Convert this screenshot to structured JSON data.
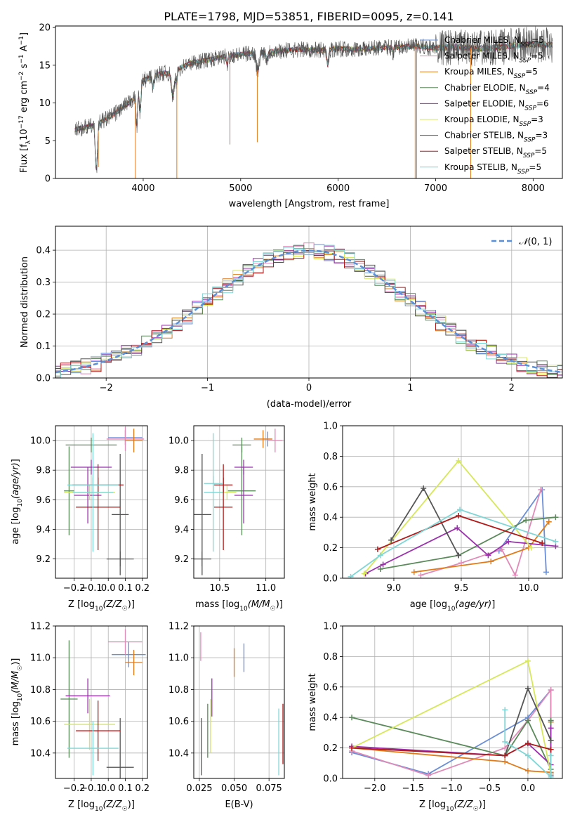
{
  "figure_title": "PLATE=1798, MJD=53851, FIBERID=0095, z=0.141",
  "colors": {
    "Chabrier MILES": "#6a8fd8",
    "Salpeter MILES": "#e08ab8",
    "Kroupa MILES": "#e07b1a",
    "Chabrier ELODIE": "#5a8a5a",
    "Salpeter ELODIE": "#9b2fae",
    "Kroupa ELODIE": "#d6e85a",
    "Chabrier STELIB": "#555555",
    "Salpeter STELIB": "#b01a1a",
    "Kroupa STELIB": "#7fd6d6",
    "normal": "#5b8fd6"
  },
  "chart_data": [
    {
      "id": "spectrum",
      "type": "line",
      "title": "PLATE=1798, MJD=53851, FIBERID=0095, z=0.141",
      "xlabel": "wavelength [Angstrom, rest frame]",
      "ylabel": "Flux [f_λ10^-17 erg cm^-2 s^-1 A^-1]",
      "xlim": [
        3100,
        8300
      ],
      "ylim": [
        0,
        20.2
      ],
      "xticks": [
        4000,
        5000,
        6000,
        7000,
        8000
      ],
      "yticks": [
        0,
        5,
        10,
        15,
        20
      ],
      "legend_position": "top-right",
      "legend": [
        "Chabrier MILES, N_SSP=5",
        "Salpeter MILES, N_SSP=5",
        "Kroupa MILES, N_SSP=5",
        "Chabrier ELODIE, N_SSP=4",
        "Salpeter ELODIE, N_SSP=6",
        "Kroupa ELODIE, N_SSP=3",
        "Chabrier STELIB, N_SSP=3",
        "Salpeter STELIB, N_SSP=5",
        "Kroupa STELIB, N_SSP=5"
      ],
      "continuum": {
        "x": [
          3300,
          3500,
          3700,
          3800,
          3900,
          3950,
          4000,
          4100,
          4200,
          4300,
          4400,
          4500,
          4700,
          4900,
          5000,
          5200,
          5400,
          5600,
          5800,
          6000,
          6200,
          6400,
          6600,
          6800,
          7000,
          7200,
          7400,
          7600,
          7800,
          8000,
          8200
        ],
        "y": [
          6.5,
          7,
          8.5,
          9.5,
          10.5,
          11,
          13,
          13.5,
          14,
          13.8,
          14.8,
          15.3,
          15.8,
          16.3,
          16.4,
          16.7,
          16.9,
          17.1,
          17,
          17.2,
          17.1,
          17.3,
          17.4,
          17.5,
          17.3,
          17.4,
          17.2,
          17.3,
          17.6,
          17.8,
          17.7
        ]
      },
      "absorption_lines": [
        {
          "x": 3520,
          "depth": 6,
          "width": 15
        },
        {
          "x": 3934,
          "depth": 4,
          "width": 10
        },
        {
          "x": 3969,
          "depth": 3,
          "width": 10
        },
        {
          "x": 4102,
          "depth": 1.5,
          "width": 12
        },
        {
          "x": 4305,
          "depth": 3,
          "width": 20
        },
        {
          "x": 4341,
          "depth": 1.5,
          "width": 10
        },
        {
          "x": 4861,
          "depth": 1.2,
          "width": 10
        },
        {
          "x": 5175,
          "depth": 2.5,
          "width": 20
        },
        {
          "x": 5270,
          "depth": 1,
          "width": 15
        },
        {
          "x": 5893,
          "depth": 2,
          "width": 15
        },
        {
          "x": 6563,
          "depth": 0.8,
          "width": 8
        }
      ],
      "spikes": [
        {
          "x": 3540,
          "y": 1.5
        },
        {
          "x": 3920,
          "y": 0
        },
        {
          "x": 4345,
          "y": 0
        },
        {
          "x": 4890,
          "y": 4.5
        },
        {
          "x": 5170,
          "y": 4.8
        },
        {
          "x": 6790,
          "y": 0
        },
        {
          "x": 6805,
          "y": 0
        },
        {
          "x": 7360,
          "y": 0
        }
      ]
    },
    {
      "id": "residuals",
      "type": "histogram",
      "xlabel": "(data-model)/error",
      "ylabel": "Normed distribution",
      "xlim": [
        -2.5,
        2.5
      ],
      "ylim": [
        0,
        0.475
      ],
      "xticks": [
        -2,
        -1,
        0,
        1,
        2
      ],
      "yticks": [
        0,
        0.1,
        0.2,
        0.3,
        0.4
      ],
      "legend_position": "top-right",
      "legend": [
        "N(0,1)"
      ],
      "bin_width": 0.1
    },
    {
      "id": "age_vs_Z",
      "type": "errorbar",
      "xlabel": "Z [log10(Z/Z☉)]",
      "ylabel": "age [log10(age/yr)]",
      "xlim": [
        -0.31,
        0.23
      ],
      "ylim": [
        9.07,
        10.1
      ],
      "xticks": [
        -0.2,
        -0.1,
        0.0,
        0.1,
        0.2
      ],
      "yticks": [
        9.2,
        9.4,
        9.6,
        9.8,
        10.0
      ],
      "points": [
        {
          "m": "Chabrier MILES",
          "x": 0.1,
          "xe": 0.1,
          "y": 10.02,
          "ye": 0.05
        },
        {
          "m": "Salpeter MILES",
          "x": 0.1,
          "xe": 0.11,
          "y": 10.01,
          "ye": 0.08
        },
        {
          "m": "Kroupa MILES",
          "x": 0.15,
          "xe": 0.05,
          "y": 10.0,
          "ye": 0.08
        },
        {
          "m": "Chabrier ELODIE",
          "x": -0.23,
          "xe": 0.03,
          "y": 9.66,
          "ye": 0.3
        },
        {
          "m": "Chabrier ELODIE",
          "x": -0.1,
          "xe": 0.15,
          "y": 9.97,
          "ye": 0.05
        },
        {
          "m": "Salpeter ELODIE",
          "x": -0.12,
          "xe": 0.08,
          "y": 9.63,
          "ye": 0.19
        },
        {
          "m": "Salpeter ELODIE",
          "x": -0.1,
          "xe": 0.12,
          "y": 9.82,
          "ye": 0.05
        },
        {
          "m": "Kroupa ELODIE",
          "x": -0.11,
          "xe": 0.15,
          "y": 9.65,
          "ye": 0.05
        },
        {
          "m": "Chabrier STELIB",
          "x": 0.07,
          "xe": 0.05,
          "y": 9.5,
          "ye": 0.41
        },
        {
          "m": "Chabrier STELIB",
          "x": 0.07,
          "xe": 0.08,
          "y": 9.2,
          "ye": 0.05
        },
        {
          "m": "Salpeter STELIB",
          "x": -0.06,
          "xe": 0.13,
          "y": 9.55,
          "ye": 0.29
        },
        {
          "m": "Salpeter STELIB",
          "x": -0.06,
          "xe": 0.15,
          "y": 9.7,
          "ye": 0.05
        },
        {
          "m": "Kroupa STELIB",
          "x": -0.09,
          "xe": 0.12,
          "y": 9.65,
          "ye": 0.4
        },
        {
          "m": "Kroupa STELIB",
          "x": -0.09,
          "xe": 0.15,
          "y": 9.7,
          "ye": 0.05
        }
      ]
    },
    {
      "id": "age_vs_mass",
      "type": "errorbar",
      "xlabel": "mass [log10(M/M☉)]",
      "ylabel": "",
      "xlim": [
        10.22,
        11.2
      ],
      "ylim": [
        9.07,
        10.1
      ],
      "xticks": [
        10.5,
        11.0
      ],
      "yticks": [
        9.2,
        9.4,
        9.6,
        9.8,
        10.0
      ],
      "points": [
        {
          "m": "Chabrier MILES",
          "x": 11.02,
          "xe": 0.05,
          "y": 10.01,
          "ye": 0.05
        },
        {
          "m": "Salpeter MILES",
          "x": 11.1,
          "xe": 0.08,
          "y": 10.0,
          "ye": 0.08
        },
        {
          "m": "Kroupa MILES",
          "x": 10.97,
          "xe": 0.1,
          "y": 10.01,
          "ye": 0.06
        },
        {
          "m": "Chabrier ELODIE",
          "x": 10.74,
          "xe": 0.15,
          "y": 9.66,
          "ye": 0.3
        },
        {
          "m": "Chabrier ELODIE",
          "x": 10.74,
          "xe": 0.1,
          "y": 9.97,
          "ye": 0.05
        },
        {
          "m": "Salpeter ELODIE",
          "x": 10.76,
          "xe": 0.1,
          "y": 9.63,
          "ye": 0.19
        },
        {
          "m": "Salpeter ELODIE",
          "x": 10.76,
          "xe": 0.1,
          "y": 9.82,
          "ye": 0.05
        },
        {
          "m": "Kroupa ELODIE",
          "x": 10.58,
          "xe": 0.1,
          "y": 9.65,
          "ye": 0.05
        },
        {
          "m": "Chabrier STELIB",
          "x": 10.31,
          "xe": 0.1,
          "y": 9.5,
          "ye": 0.41
        },
        {
          "m": "Chabrier STELIB",
          "x": 10.31,
          "xe": 0.1,
          "y": 9.2,
          "ye": 0.05
        },
        {
          "m": "Salpeter STELIB",
          "x": 10.54,
          "xe": 0.1,
          "y": 9.55,
          "ye": 0.29
        },
        {
          "m": "Salpeter STELIB",
          "x": 10.54,
          "xe": 0.1,
          "y": 9.7,
          "ye": 0.05
        },
        {
          "m": "Kroupa STELIB",
          "x": 10.43,
          "xe": 0.1,
          "y": 9.65,
          "ye": 0.4
        },
        {
          "m": "Kroupa STELIB",
          "x": 10.43,
          "xe": 0.1,
          "y": 9.71,
          "ye": 0.05
        }
      ]
    },
    {
      "id": "mass_weight_vs_age",
      "type": "line",
      "xlabel": "age [log10(age/yr)]",
      "ylabel": "mass weight",
      "xlim": [
        8.62,
        10.25
      ],
      "ylim": [
        0,
        1
      ],
      "xticks": [
        9.0,
        9.5,
        10.0
      ],
      "yticks": [
        0,
        0.2,
        0.4,
        0.6,
        0.8,
        1.0
      ],
      "series": [
        {
          "m": "Chabrier MILES",
          "x": [
            9.78,
            10.1,
            10.13
          ],
          "y": [
            0.18,
            0.58,
            0.04
          ]
        },
        {
          "m": "Salpeter MILES",
          "x": [
            9.2,
            9.5,
            9.8,
            9.9,
            10.09
          ],
          "y": [
            0.02,
            0.1,
            0.19,
            0.02,
            0.58
          ]
        },
        {
          "m": "Kroupa MILES",
          "x": [
            9.15,
            9.72,
            10.0,
            10.15
          ],
          "y": [
            0.04,
            0.11,
            0.2,
            0.37
          ]
        },
        {
          "m": "Chabrier ELODIE",
          "x": [
            8.9,
            9.48,
            9.98,
            10.2
          ],
          "y": [
            0.06,
            0.15,
            0.38,
            0.4
          ]
        },
        {
          "m": "Salpeter ELODIE",
          "x": [
            8.79,
            8.92,
            9.47,
            9.7,
            9.85,
            10.2
          ],
          "y": [
            0.03,
            0.09,
            0.33,
            0.15,
            0.24,
            0.21
          ]
        },
        {
          "m": "Kroupa ELODIE",
          "x": [
            8.78,
            9.48,
            10.02
          ],
          "y": [
            0.03,
            0.77,
            0.2
          ]
        },
        {
          "m": "Chabrier STELIB",
          "x": [
            8.98,
            9.22,
            9.48
          ],
          "y": [
            0.25,
            0.59,
            0.15
          ]
        },
        {
          "m": "Salpeter STELIB",
          "x": [
            8.88,
            9.48,
            10.1
          ],
          "y": [
            0.19,
            0.41,
            0.23
          ]
        },
        {
          "m": "Kroupa STELIB",
          "x": [
            8.68,
            8.9,
            9.49,
            10.2
          ],
          "y": [
            0.01,
            0.15,
            0.45,
            0.24
          ]
        }
      ]
    },
    {
      "id": "mass_vs_Z",
      "type": "errorbar",
      "xlabel": "Z [log10(Z/Z☉)]",
      "ylabel": "mass [log10(M/M☉)]",
      "xlim": [
        -0.31,
        0.23
      ],
      "ylim": [
        10.24,
        11.2
      ],
      "xticks": [
        -0.2,
        -0.1,
        0.0,
        0.1,
        0.2
      ],
      "yticks": [
        10.4,
        10.6,
        10.8,
        11.0,
        11.2
      ],
      "points": [
        {
          "m": "Chabrier MILES",
          "x": 0.12,
          "xe": 0.1,
          "y": 11.02,
          "ye": 0.08
        },
        {
          "m": "Salpeter MILES",
          "x": 0.1,
          "xe": 0.1,
          "y": 11.1,
          "ye": 0.08
        },
        {
          "m": "Kroupa MILES",
          "x": 0.15,
          "xe": 0.05,
          "y": 10.97,
          "ye": 0.08
        },
        {
          "m": "Chabrier ELODIE",
          "x": -0.23,
          "xe": 0.05,
          "y": 10.74,
          "ye": 0.37
        },
        {
          "m": "Salpeter ELODIE",
          "x": -0.12,
          "xe": 0.13,
          "y": 10.76,
          "ye": 0.11
        },
        {
          "m": "Kroupa ELODIE",
          "x": -0.11,
          "xe": 0.15,
          "y": 10.58,
          "ye": 0.16
        },
        {
          "m": "Chabrier STELIB",
          "x": 0.07,
          "xe": 0.08,
          "y": 10.31,
          "ye": 0.31
        },
        {
          "m": "Salpeter STELIB",
          "x": -0.06,
          "xe": 0.13,
          "y": 10.54,
          "ye": 0.19
        },
        {
          "m": "Kroupa STELIB",
          "x": -0.09,
          "xe": 0.15,
          "y": 10.43,
          "ye": 0.17
        }
      ]
    },
    {
      "id": "mass_vs_EBV",
      "type": "errorbar",
      "xlabel": "E(B-V)",
      "ylabel": "",
      "xlim": [
        0.021,
        0.086
      ],
      "ylim": [
        10.24,
        11.2
      ],
      "xticks": [
        0.025,
        0.05,
        0.075
      ],
      "yticks": [
        10.4,
        10.6,
        10.8,
        11.0,
        11.2
      ],
      "points": [
        {
          "m": "Chabrier MILES",
          "x": 0.057,
          "xe": 0,
          "y": 11.0,
          "ye": 0.09
        },
        {
          "m": "Salpeter MILES",
          "x": 0.026,
          "xe": 0,
          "y": 11.07,
          "ye": 0.09
        },
        {
          "m": "Kroupa MILES",
          "x": 0.05,
          "xe": 0,
          "y": 10.97,
          "ye": 0.09
        },
        {
          "m": "Chabrier ELODIE",
          "x": 0.031,
          "xe": 0,
          "y": 10.54,
          "ye": 0.17
        },
        {
          "m": "Salpeter ELODIE",
          "x": 0.034,
          "xe": 0,
          "y": 10.75,
          "ye": 0.12
        },
        {
          "m": "Kroupa ELODIE",
          "x": 0.033,
          "xe": 0,
          "y": 10.57,
          "ye": 0.17
        },
        {
          "m": "Chabrier STELIB",
          "x": 0.0265,
          "xe": 0,
          "y": 10.44,
          "ye": 0.18
        },
        {
          "m": "Salpeter STELIB",
          "x": 0.085,
          "xe": 0,
          "y": 10.52,
          "ye": 0.19
        },
        {
          "m": "Kroupa STELIB",
          "x": 0.082,
          "xe": 0,
          "y": 10.47,
          "ye": 0.21
        }
      ]
    },
    {
      "id": "mass_weight_vs_Z",
      "type": "line",
      "xlabel": "Z [log10(Z/Z☉)]",
      "ylabel": "mass weight",
      "xlim": [
        -2.42,
        0.45
      ],
      "ylim": [
        0,
        1
      ],
      "xticks": [
        -2.0,
        -1.5,
        -1.0,
        -0.5,
        0.0
      ],
      "yticks": [
        0,
        0.2,
        0.4,
        0.6,
        0.8,
        1.0
      ],
      "series": [
        {
          "m": "Chabrier MILES",
          "x": [
            -2.3,
            -1.3,
            0.0,
            0.3,
            0.3
          ],
          "y": [
            0.17,
            0.03,
            0.4,
            0.58,
            0.02
          ]
        },
        {
          "m": "Salpeter MILES",
          "x": [
            -2.3,
            -1.3,
            -0.3,
            0.0,
            0.3,
            0.3
          ],
          "y": [
            0.18,
            0.02,
            0.2,
            0.38,
            0.58,
            0.03
          ]
        },
        {
          "m": "Kroupa MILES",
          "x": [
            -2.3,
            -0.3,
            0.0,
            0.3,
            0.3
          ],
          "y": [
            0.2,
            0.11,
            0.05,
            0.04,
            0.37
          ]
        },
        {
          "m": "Chabrier ELODIE",
          "x": [
            -2.3,
            -0.3,
            0.0,
            0.3,
            0.3
          ],
          "y": [
            0.4,
            0.15,
            0.38,
            0.06,
            0.38
          ]
        },
        {
          "m": "Salpeter ELODIE",
          "x": [
            -2.3,
            -0.3,
            0.0,
            0.3,
            0.3,
            0.3
          ],
          "y": [
            0.21,
            0.15,
            0.23,
            0.09,
            0.33,
            0.03
          ]
        },
        {
          "m": "Kroupa ELODIE",
          "x": [
            -2.3,
            0.0,
            0.3
          ],
          "y": [
            0.2,
            0.77,
            0.03
          ]
        },
        {
          "m": "Chabrier STELIB",
          "x": [
            -0.3,
            0.0,
            0.3
          ],
          "y": [
            0.15,
            0.59,
            0.25
          ]
        },
        {
          "m": "Salpeter STELIB",
          "x": [
            -2.3,
            -0.3,
            0.0,
            0.3
          ],
          "y": [
            0.2,
            0.15,
            0.23,
            0.19
          ]
        },
        {
          "m": "Kroupa STELIB",
          "x": [
            -0.3,
            -0.3,
            0.0,
            0.3,
            0.3
          ],
          "y": [
            0.45,
            0.24,
            0.15,
            0.01,
            0.15
          ]
        }
      ]
    }
  ]
}
